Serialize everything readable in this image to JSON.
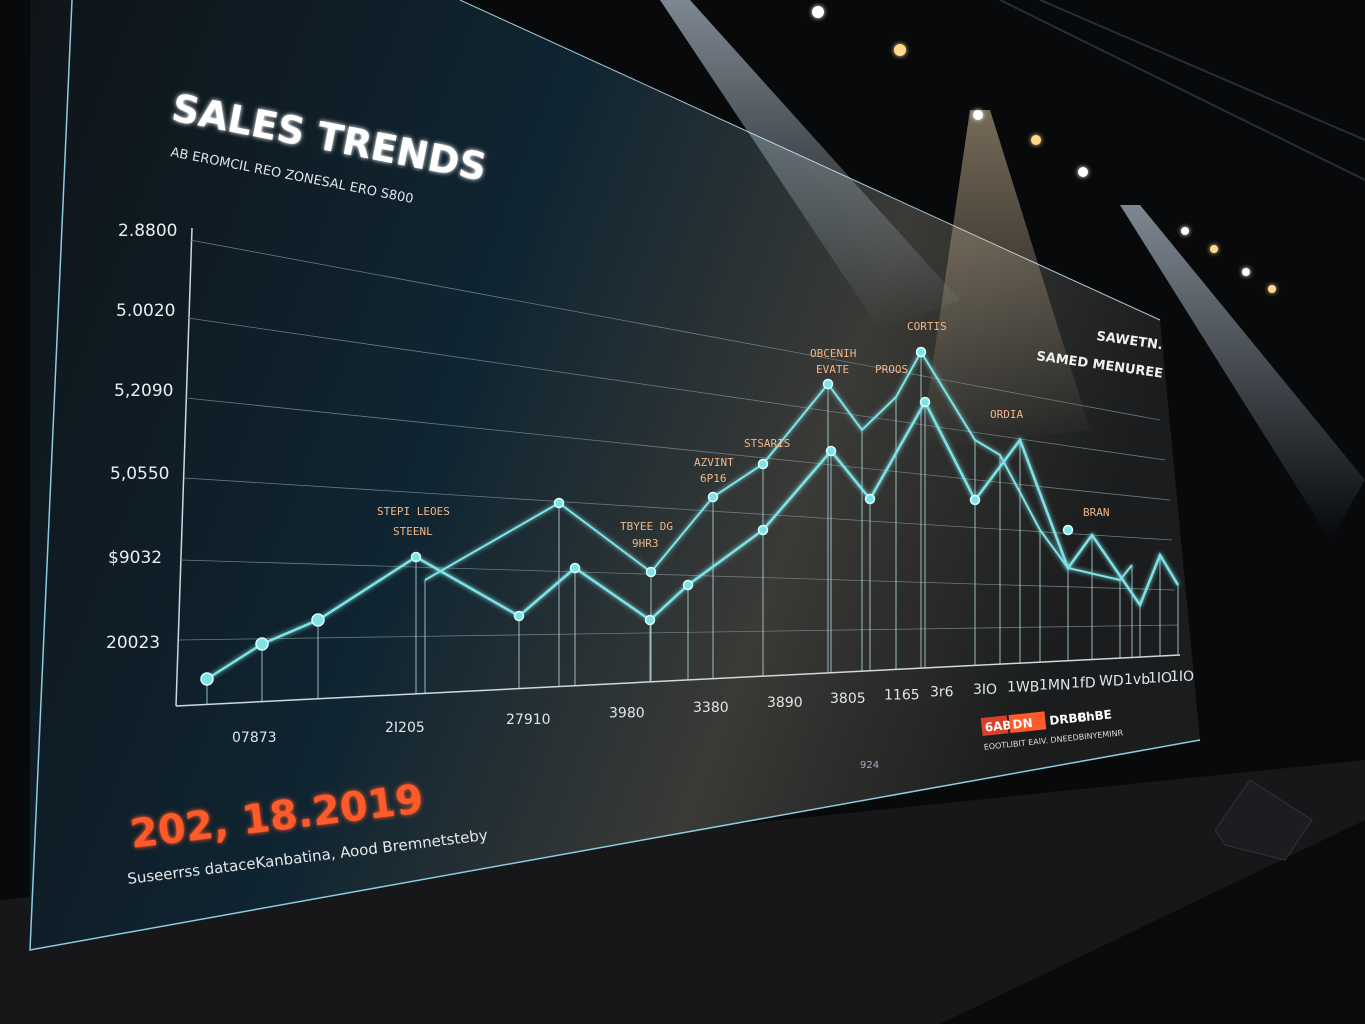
{
  "screen": {
    "title": "SALES TRENDS",
    "subtitle": "AB EROMCIL REO ZONESAL ERO S800",
    "y_tick_labels": [
      "2.8800",
      "5.0020",
      "5,2090",
      "5,0550",
      "$9032",
      "20023"
    ],
    "x_tick_labels": [
      "07873",
      "2I205",
      "27910",
      "3980",
      "3380",
      "3890",
      "3805",
      "1165",
      "3r6",
      "3IO",
      "1WB",
      "1MN",
      "1fD",
      "WD",
      "1vb",
      "1IO",
      "1IO"
    ],
    "annotations": [
      "STEPI LEOES",
      "STEENL",
      "TBYEE DG",
      "9HR3",
      "AZVINT",
      "6P16",
      "STSARIS",
      "OBCENIH",
      "EVATE",
      "PROOS",
      "CORTIS",
      "ORDIA",
      "BRAN"
    ],
    "right_heading_1": "SAWETN.",
    "right_heading_2": "SAMED MENUREE",
    "date_headline": "202, 18.2019",
    "caption": "Suseerrss dataceKanbatina, Aood Bremnetsteby",
    "small_center": "924",
    "logo_badges": [
      "6AB",
      "DN",
      "DRBB",
      "ChBE"
    ],
    "logo_caption": "EOOTLIBIT EAIV. DNEEDBINYEMINR"
  },
  "colors": {
    "line": "#7fe3e6",
    "accent": "#ff5a2a",
    "screen": "#14191d"
  }
}
